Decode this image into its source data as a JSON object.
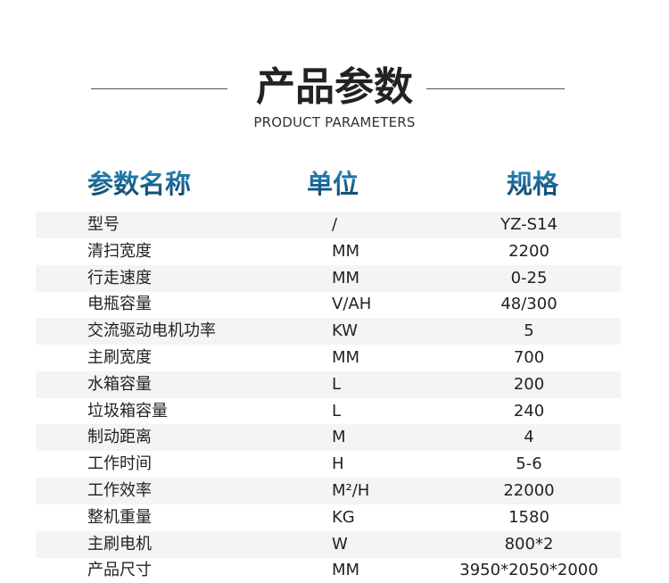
{
  "title": "产品参数",
  "subtitle": "PRODUCT PARAMETERS",
  "headers": {
    "name": "参数名称",
    "unit": "单位",
    "spec": "规格"
  },
  "header_color": "#0b3c60",
  "rows": [
    {
      "name": "型号",
      "unit": "/",
      "spec": "YZ-S14"
    },
    {
      "name": "清扫宽度",
      "unit": "MM",
      "spec": "2200"
    },
    {
      "name": "行走速度",
      "unit": "MM",
      "spec": "0-25"
    },
    {
      "name": "电瓶容量",
      "unit": "V/AH",
      "spec": "48/300"
    },
    {
      "name": "交流驱动电机功率",
      "unit": "KW",
      "spec": "5"
    },
    {
      "name": "主刷宽度",
      "unit": "MM",
      "spec": "700"
    },
    {
      "name": "水箱容量",
      "unit": "L",
      "spec": "200"
    },
    {
      "name": "垃圾箱容量",
      "unit": "L",
      "spec": "240"
    },
    {
      "name": "制动距离",
      "unit": "M",
      "spec": "4"
    },
    {
      "name": "工作时间",
      "unit": "H",
      "spec": "5-6"
    },
    {
      "name": "工作效率",
      "unit": "M²/H",
      "spec": "22000"
    },
    {
      "name": "整机重量",
      "unit": "KG",
      "spec": "1580"
    },
    {
      "name": "主刷电机",
      "unit": "W",
      "spec": "800*2"
    },
    {
      "name": "产品尺寸",
      "unit": "MM",
      "spec": "3950*2050*2000"
    }
  ]
}
